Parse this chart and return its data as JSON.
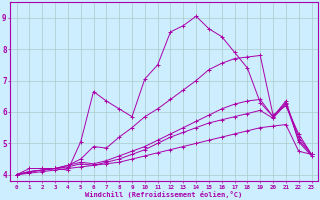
{
  "xlabel": "Windchill (Refroidissement éolien,°C)",
  "xlim": [
    -0.5,
    23.5
  ],
  "ylim": [
    3.8,
    9.5
  ],
  "xticks": [
    0,
    1,
    2,
    3,
    4,
    5,
    6,
    7,
    8,
    9,
    10,
    11,
    12,
    13,
    14,
    15,
    16,
    17,
    18,
    19,
    20,
    21,
    22,
    23
  ],
  "yticks": [
    4,
    5,
    6,
    7,
    8,
    9
  ],
  "bg_color": "#cceeff",
  "line_color": "#aa00aa",
  "grid_color": "#aacccc",
  "lines": [
    [
      4.0,
      4.2,
      4.2,
      4.2,
      4.15,
      5.05,
      6.65,
      6.35,
      6.1,
      5.85,
      7.05,
      7.5,
      8.55,
      8.75,
      9.05,
      8.65,
      8.4,
      7.9,
      7.4,
      6.3,
      5.85,
      6.35,
      5.05,
      4.6
    ],
    [
      4.0,
      4.1,
      4.15,
      4.2,
      4.3,
      4.5,
      4.9,
      4.85,
      5.2,
      5.5,
      5.85,
      6.1,
      6.4,
      6.7,
      7.0,
      7.35,
      7.55,
      7.7,
      7.75,
      7.8,
      5.9,
      6.2,
      5.3,
      4.65
    ],
    [
      4.0,
      4.1,
      4.15,
      4.2,
      4.3,
      4.4,
      4.35,
      4.45,
      4.6,
      4.75,
      4.9,
      5.1,
      5.3,
      5.5,
      5.7,
      5.9,
      6.1,
      6.25,
      6.35,
      6.4,
      5.85,
      6.3,
      5.2,
      4.65
    ],
    [
      4.0,
      4.1,
      4.15,
      4.2,
      4.25,
      4.35,
      4.3,
      4.4,
      4.5,
      4.65,
      4.8,
      5.0,
      5.2,
      5.35,
      5.5,
      5.65,
      5.75,
      5.85,
      5.95,
      6.05,
      5.8,
      6.25,
      5.1,
      4.65
    ],
    [
      4.0,
      4.05,
      4.1,
      4.15,
      4.2,
      4.25,
      4.3,
      4.35,
      4.4,
      4.5,
      4.6,
      4.7,
      4.8,
      4.9,
      5.0,
      5.1,
      5.2,
      5.3,
      5.4,
      5.5,
      5.55,
      5.6,
      4.75,
      4.65
    ]
  ]
}
